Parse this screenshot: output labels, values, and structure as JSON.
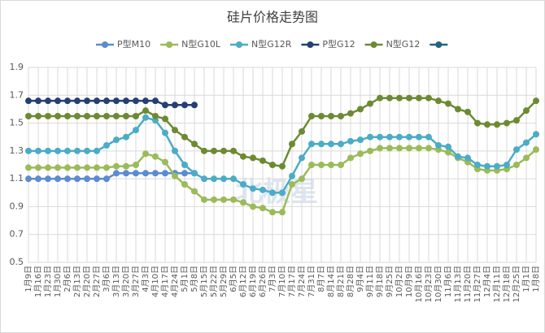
{
  "chart_data": {
    "type": "line",
    "title": "硅片价格走势图",
    "watermark": "北极星",
    "categories": [
      "1月9日",
      "1月16日",
      "1月23日",
      "1月30日",
      "2月6日",
      "2月13日",
      "2月20日",
      "2月27日",
      "3月6日",
      "3月13日",
      "3月20日",
      "3月27日",
      "4月3日",
      "4月10日",
      "4月17日",
      "4月24日",
      "5月1日",
      "5月8日",
      "5月15日",
      "5月22日",
      "5月29日",
      "6月5日",
      "6月12日",
      "6月19日",
      "6月26日",
      "7月3日",
      "7月10日",
      "7月17日",
      "7月24日",
      "7月31日",
      "8月7日",
      "8月14日",
      "8月21日",
      "8月28日",
      "9月4日",
      "9月11日",
      "9月18日",
      "9月25日",
      "10月2日",
      "10月9日",
      "10月16日",
      "10月23日",
      "10月30日",
      "11月6日",
      "11月13日",
      "11月20日",
      "11月27日",
      "12月4日",
      "12月11日",
      "12月18日",
      "12月25日",
      "1月1日",
      "1月8日"
    ],
    "series": [
      {
        "name": "P型M10",
        "color": "#5b8bd0",
        "values": [
          1.1,
          1.1,
          1.1,
          1.1,
          1.1,
          1.1,
          1.1,
          1.1,
          1.1,
          1.14,
          1.14,
          1.14,
          1.14,
          1.14,
          1.14,
          1.14,
          1.14,
          1.14,
          null,
          null,
          null,
          null,
          null,
          null,
          null,
          null,
          null,
          null,
          null,
          null,
          null,
          null,
          null,
          null,
          null,
          null,
          null,
          null,
          null,
          null,
          null,
          null,
          null,
          null,
          null,
          null,
          null,
          null,
          null,
          null,
          null,
          null,
          null
        ]
      },
      {
        "name": "N型G10L",
        "color": "#9bbb59",
        "values": [
          1.18,
          1.18,
          1.18,
          1.18,
          1.18,
          1.18,
          1.18,
          1.18,
          1.18,
          1.19,
          1.19,
          1.2,
          1.28,
          1.26,
          1.22,
          1.12,
          1.06,
          1.01,
          0.95,
          0.95,
          0.95,
          0.95,
          0.93,
          0.9,
          0.89,
          0.86,
          0.86,
          1.06,
          1.1,
          1.2,
          1.2,
          1.2,
          1.2,
          1.25,
          1.28,
          1.3,
          1.32,
          1.32,
          1.32,
          1.32,
          1.32,
          1.32,
          1.31,
          1.29,
          1.25,
          1.22,
          1.17,
          1.16,
          1.16,
          1.17,
          1.2,
          1.25,
          1.31
        ]
      },
      {
        "name": "N型G12R",
        "color": "#4bacc6",
        "values": [
          1.3,
          1.3,
          1.3,
          1.3,
          1.3,
          1.3,
          1.3,
          1.3,
          1.34,
          1.38,
          1.4,
          1.45,
          1.54,
          1.52,
          1.43,
          1.3,
          1.2,
          1.14,
          1.1,
          1.1,
          1.1,
          1.1,
          1.06,
          1.03,
          1.02,
          1.0,
          1.0,
          1.12,
          1.25,
          1.35,
          1.35,
          1.35,
          1.35,
          1.37,
          1.38,
          1.4,
          1.4,
          1.4,
          1.4,
          1.4,
          1.4,
          1.4,
          1.34,
          1.33,
          1.26,
          1.25,
          1.2,
          1.19,
          1.19,
          1.2,
          1.31,
          1.36,
          1.42
        ]
      },
      {
        "name": "P型G12",
        "color": "#263f73",
        "values": [
          1.66,
          1.66,
          1.66,
          1.66,
          1.66,
          1.66,
          1.66,
          1.66,
          1.66,
          1.66,
          1.66,
          1.66,
          1.66,
          1.66,
          1.63,
          1.63,
          1.63,
          1.63,
          null,
          null,
          null,
          null,
          null,
          null,
          null,
          null,
          null,
          null,
          null,
          null,
          null,
          null,
          null,
          null,
          null,
          null,
          null,
          null,
          null,
          null,
          null,
          null,
          null,
          null,
          null,
          null,
          null,
          null,
          null,
          null,
          null,
          null,
          null
        ]
      },
      {
        "name": "N型G12",
        "color": "#6d8a33",
        "values": [
          1.55,
          1.55,
          1.55,
          1.55,
          1.55,
          1.55,
          1.55,
          1.55,
          1.55,
          1.55,
          1.55,
          1.55,
          1.59,
          1.55,
          1.53,
          1.45,
          1.4,
          1.35,
          1.3,
          1.3,
          1.3,
          1.3,
          1.26,
          1.25,
          1.23,
          1.2,
          1.19,
          1.35,
          1.44,
          1.55,
          1.55,
          1.55,
          1.55,
          1.57,
          1.6,
          1.64,
          1.68,
          1.68,
          1.68,
          1.68,
          1.68,
          1.68,
          1.66,
          1.64,
          1.6,
          1.58,
          1.5,
          1.49,
          1.49,
          1.5,
          1.52,
          1.59,
          1.66
        ]
      },
      {
        "color": "#22647e"
      }
    ],
    "ylim": [
      0.5,
      1.9
    ],
    "yticks": [
      0.5,
      0.7,
      0.9,
      1.1,
      1.3,
      1.5,
      1.7,
      1.9
    ],
    "grid": true,
    "legend": "top"
  }
}
